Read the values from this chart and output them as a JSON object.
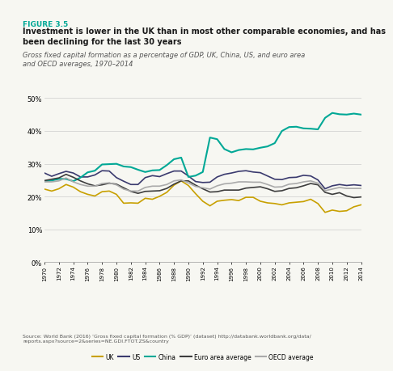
{
  "figure_label": "FIGURE 3.5",
  "title": "Investment is lower in the UK than in most other comparable economies, and has\nbeen declining for the last 30 years",
  "subtitle": "Gross fixed capital formation as a percentage of GDP, UK, China, US, and euro area\nand OECD averages, 1970–2014",
  "source": "Source: World Bank (2016) ‘Gross fixed capital formation (% GDP)’ (dataset) http://databank.worldbank.org/data/\nreports.aspx?source=2&series=NE.GDI.FTOT.ZS&country",
  "years": [
    1970,
    1971,
    1972,
    1973,
    1974,
    1975,
    1976,
    1977,
    1978,
    1979,
    1980,
    1981,
    1982,
    1983,
    1984,
    1985,
    1986,
    1987,
    1988,
    1989,
    1990,
    1991,
    1992,
    1993,
    1994,
    1995,
    1996,
    1997,
    1998,
    1999,
    2000,
    2001,
    2002,
    2003,
    2004,
    2005,
    2006,
    2007,
    2008,
    2009,
    2010,
    2011,
    2012,
    2013,
    2014
  ],
  "UK": [
    22.3,
    21.7,
    22.4,
    23.7,
    22.9,
    21.5,
    20.7,
    20.2,
    21.5,
    21.7,
    20.7,
    18.0,
    18.1,
    18.0,
    19.5,
    19.2,
    20.1,
    21.3,
    23.5,
    24.8,
    23.4,
    20.9,
    18.6,
    17.2,
    18.6,
    18.9,
    19.1,
    18.8,
    19.8,
    19.8,
    18.6,
    18.1,
    17.9,
    17.5,
    18.1,
    18.3,
    18.5,
    19.2,
    17.9,
    15.2,
    15.9,
    15.5,
    15.7,
    16.9,
    17.5
  ],
  "US": [
    27.2,
    26.2,
    27.0,
    27.7,
    27.2,
    26.0,
    26.0,
    26.6,
    27.9,
    27.8,
    25.8,
    24.7,
    23.7,
    23.7,
    25.8,
    26.4,
    26.1,
    27.0,
    27.8,
    27.8,
    26.3,
    24.6,
    24.3,
    24.4,
    26.0,
    26.8,
    27.2,
    27.7,
    27.9,
    27.5,
    27.3,
    26.3,
    25.3,
    25.2,
    25.8,
    25.9,
    26.5,
    26.3,
    25.1,
    22.4,
    23.3,
    23.7,
    23.4,
    23.6,
    23.4
  ],
  "China": [
    24.7,
    24.9,
    25.4,
    25.4,
    24.7,
    25.8,
    27.4,
    27.9,
    29.8,
    29.9,
    30.0,
    29.2,
    29.0,
    28.2,
    27.5,
    28.0,
    28.1,
    29.6,
    31.4,
    31.9,
    26.0,
    26.4,
    27.5,
    38.0,
    37.5,
    34.5,
    33.5,
    34.2,
    34.5,
    34.4,
    34.9,
    35.3,
    36.3,
    40.0,
    41.2,
    41.3,
    40.8,
    40.7,
    40.5,
    44.0,
    45.5,
    45.1,
    45.0,
    45.3,
    45.0
  ],
  "Euro_area": [
    24.9,
    25.3,
    25.7,
    26.8,
    25.9,
    24.8,
    23.9,
    23.3,
    23.6,
    24.1,
    23.8,
    22.7,
    21.6,
    21.0,
    21.6,
    21.7,
    21.8,
    22.5,
    23.8,
    24.8,
    24.8,
    23.5,
    22.4,
    21.4,
    21.5,
    22.0,
    22.0,
    22.0,
    22.6,
    22.8,
    23.0,
    22.4,
    21.6,
    21.8,
    22.5,
    22.7,
    23.3,
    24.0,
    23.6,
    21.3,
    20.7,
    21.2,
    20.2,
    19.7,
    19.9
  ],
  "OECD": [
    24.5,
    24.5,
    24.8,
    25.7,
    24.5,
    23.7,
    23.2,
    23.2,
    24.0,
    24.2,
    23.6,
    22.3,
    21.7,
    21.7,
    22.8,
    23.2,
    23.2,
    23.7,
    24.8,
    25.1,
    24.2,
    23.1,
    22.7,
    22.3,
    23.3,
    23.9,
    24.1,
    24.5,
    24.5,
    24.4,
    24.4,
    23.7,
    22.9,
    23.0,
    23.8,
    24.0,
    24.5,
    24.8,
    24.1,
    21.8,
    22.3,
    22.8,
    22.5,
    22.5,
    22.5
  ],
  "colors": {
    "UK": "#c8a000",
    "US": "#3a3a6e",
    "China": "#00a896",
    "Euro_area": "#3d3d3d",
    "OECD": "#aaaaaa"
  },
  "top_bar_color": "#00a896",
  "ylim": [
    0,
    50
  ],
  "yticks": [
    0,
    10,
    20,
    30,
    40,
    50
  ],
  "background_color": "#f7f7f2",
  "figure_label_color": "#00a896",
  "title_color": "#1a1a1a",
  "subtitle_color": "#555555"
}
